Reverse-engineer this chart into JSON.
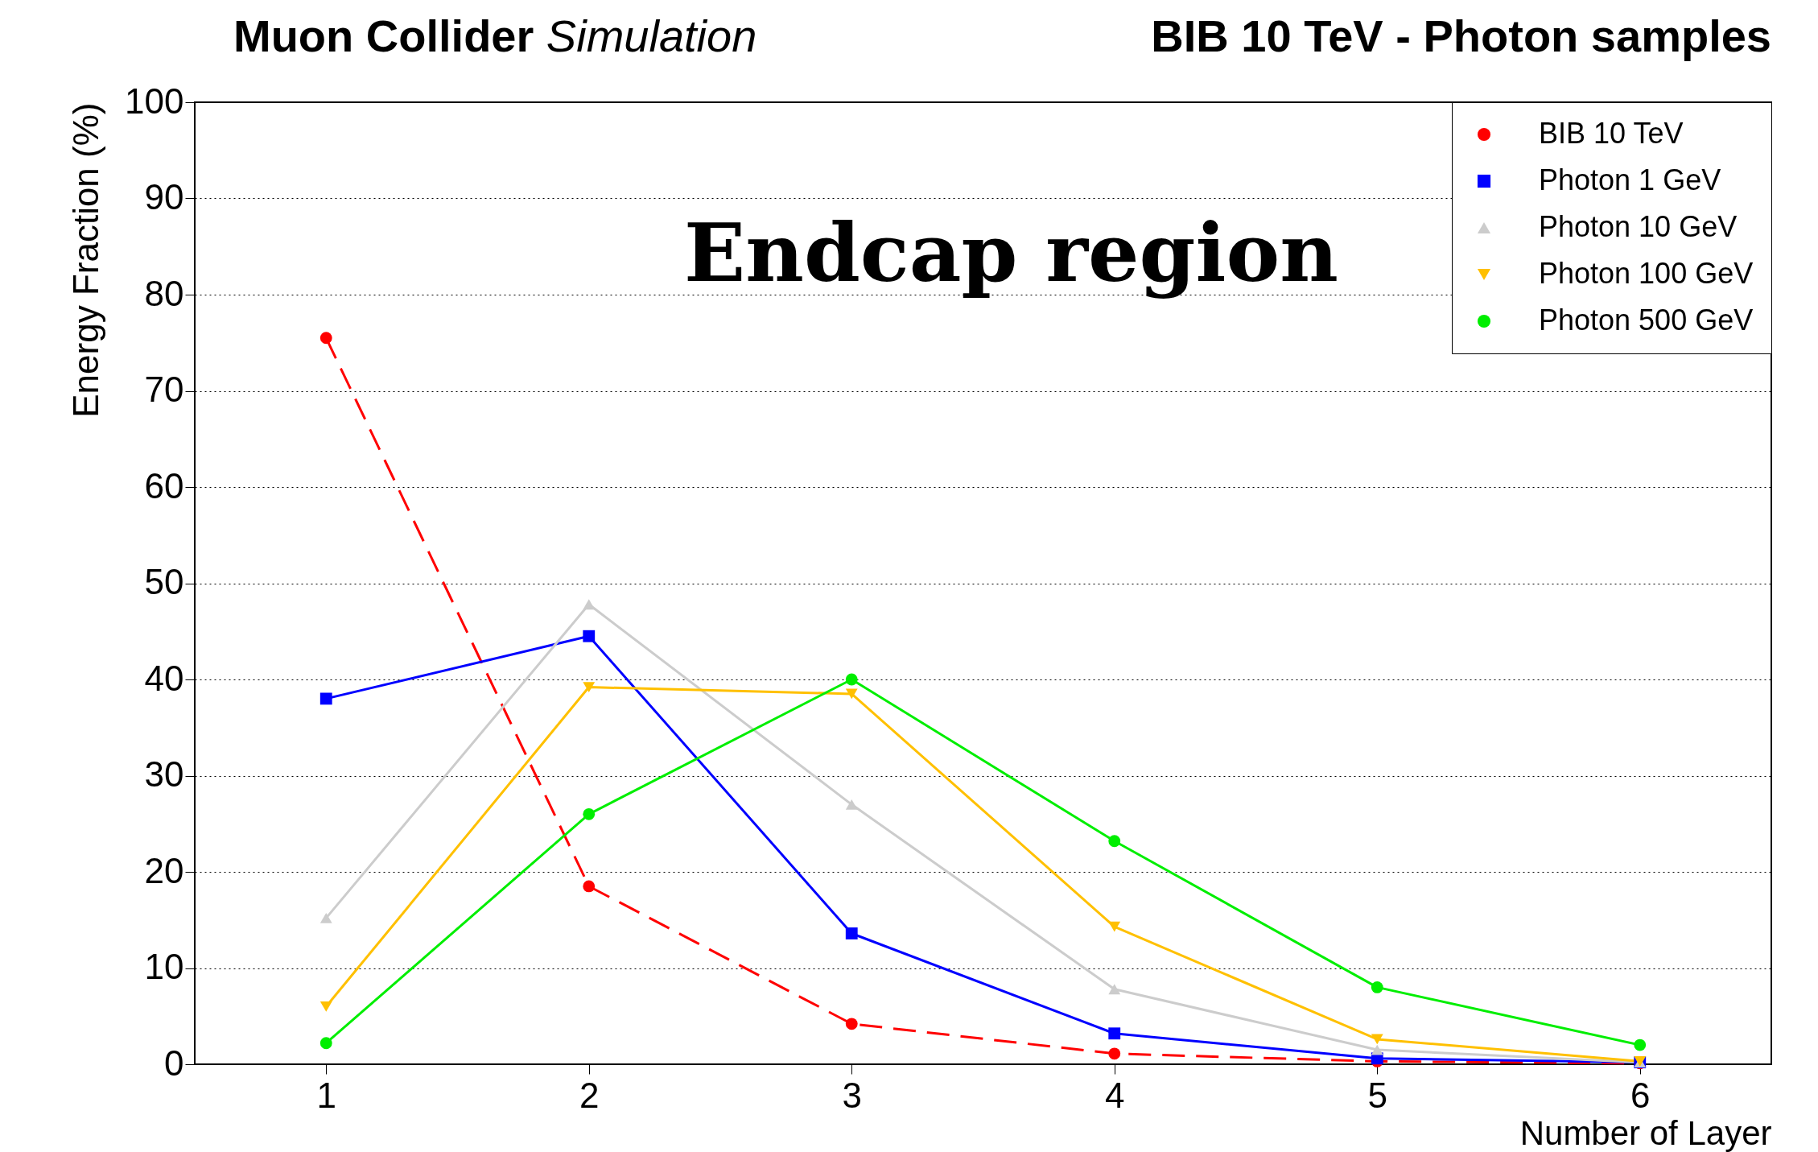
{
  "chart_data": {
    "type": "line",
    "title": "Muon Collider Simulation",
    "subtitle": "BIB 10 TeV - Photon samples",
    "xlabel": "Number of Layer",
    "ylabel": "Energy Fraction (%)",
    "annotations": [
      "Endcap region"
    ],
    "x": [
      1,
      2,
      3,
      4,
      5,
      6
    ],
    "xlim": [
      0.5,
      6.5
    ],
    "xticks": [
      1,
      2,
      3,
      4,
      5,
      6
    ],
    "ylim": [
      0,
      100
    ],
    "yticks": [
      0,
      10,
      20,
      30,
      40,
      50,
      60,
      70,
      80,
      90,
      100
    ],
    "grid": "y",
    "legend": "top right",
    "series": [
      {
        "name": "BIB 10 TeV",
        "color": "#ff0000",
        "marker": "circle",
        "line_style": "dashed",
        "values": [
          75.5,
          18.5,
          4.2,
          1.1,
          0.3,
          0.1
        ]
      },
      {
        "name": "Photon 1 GeV",
        "color": "#0000ff",
        "marker": "square",
        "line_style": "solid",
        "values": [
          38,
          44.5,
          13.6,
          3.2,
          0.6,
          0.2
        ]
      },
      {
        "name": "Photon 10 GeV",
        "color": "#cccccc",
        "marker": "triangle",
        "line_style": "solid",
        "values": [
          15.2,
          47.8,
          27,
          7.8,
          1.5,
          0.2
        ]
      },
      {
        "name": "Photon 100 GeV",
        "color": "#ffc000",
        "marker": "triangle-down",
        "line_style": "solid",
        "values": [
          6,
          39.2,
          38.5,
          14.3,
          2.6,
          0.3
        ]
      },
      {
        "name": "Photon 500 GeV",
        "color": "#00ee00",
        "marker": "circle",
        "line_style": "solid",
        "values": [
          2.2,
          26,
          40,
          23.2,
          8,
          2
        ]
      }
    ]
  }
}
